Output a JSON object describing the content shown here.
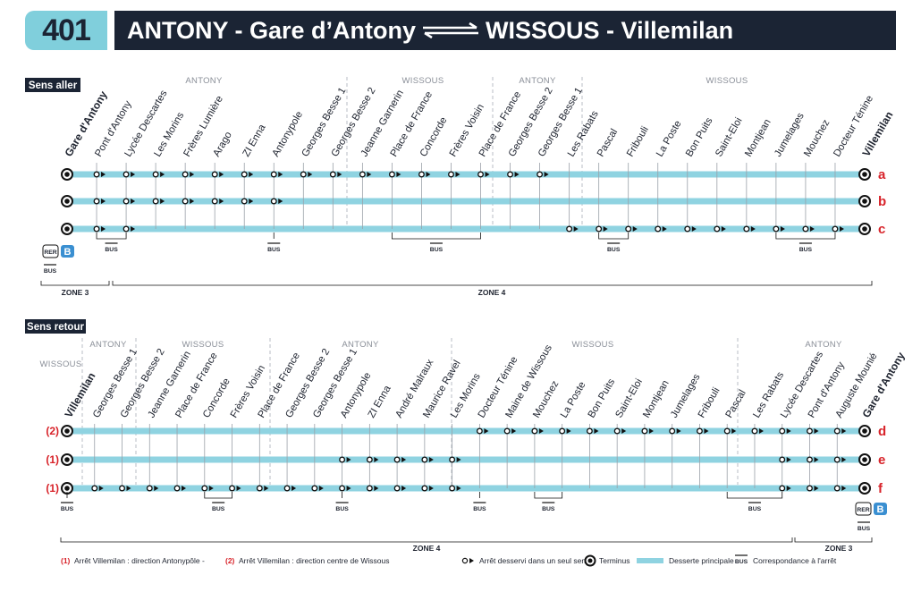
{
  "header": {
    "line_number": "401",
    "origin": "ANTONY - Gare d’Antony",
    "destination": "WISSOUS - Villemilan",
    "badge_color": "#80cfdc",
    "bar_color": "#1b2434"
  },
  "colors": {
    "line": "#8fd3e1",
    "red": "#d8232a",
    "dark": "#1b2434",
    "rer_blue": "#3a8fd1"
  },
  "sens_aller": {
    "label": "Sens aller",
    "towns": [
      "ANTONY",
      "WISSOUS",
      "ANTONY",
      "WISSOUS"
    ],
    "stops": [
      "Gare d'Antony",
      "Pont d'Antony",
      "Lycée Descartes",
      "Les Morins",
      "Frères Lumière",
      "Arago",
      "ZI Enna",
      "Antonypole",
      "Georges Besse 1",
      "Georges Besse 2",
      "Jeanne Garnerin",
      "Place de France",
      "Concorde",
      "Frères Voisin",
      "Place de France",
      "Georges Besse 2",
      "Georges Besse 1",
      "Les Rabats",
      "Pascal",
      "Fribouli",
      "La Poste",
      "Bon Puits",
      "Saint-Eloi",
      "Montjean",
      "Jumelages",
      "Mouchez",
      "Docteur Ténine",
      "Villemilan"
    ],
    "branches": [
      "a",
      "b",
      "c"
    ],
    "zones": [
      "ZONE 3",
      "ZONE 4"
    ]
  },
  "sens_retour": {
    "label": "Sens retour",
    "towns": [
      "WISSOUS",
      "ANTONY",
      "WISSOUS",
      "ANTONY",
      "WISSOUS",
      "ANTONY"
    ],
    "stops": [
      "Villemilan",
      "Georges Besse 1",
      "Georges Besse 2",
      "Jeanne Garnerin",
      "Place de France",
      "Concorde",
      "Frères Voisin",
      "Place de France",
      "Georges Besse 2",
      "Georges Besse 1",
      "Antonypole",
      "ZI Enna",
      "André Malraux",
      "Maurice Ravel",
      "Les Morins",
      "Docteur Ténine",
      "Maine de Wissous",
      "Mouchez",
      "La Poste",
      "Bon Puits",
      "Saint-Eloi",
      "Montjean",
      "Jumelages",
      "Fribouli",
      "Pascal",
      "Les Rabats",
      "Lycée Descartes",
      "Pont d'Antony",
      "Auguste Mounié",
      "Gare d'Antony"
    ],
    "branches": [
      "d",
      "e",
      "f"
    ],
    "notes_markers": [
      "(2)",
      "(1)",
      "(1)"
    ],
    "zones": [
      "ZONE 4",
      "ZONE 3"
    ]
  },
  "transfers": {
    "rer": "RER",
    "rer_line": "B",
    "bus": "BUS"
  },
  "legend": {
    "note1_marker": "(1)",
    "note1_text": "Arrêt Villemilan : direction Antonypôle -",
    "note2_marker": "(2)",
    "note2_text": "Arrêt Villemilan : direction centre de Wissous",
    "one_way": "Arrêt desservi dans un seul sens",
    "terminus": "Terminus",
    "main_service": "Desserte principale",
    "bus_label": "BUS",
    "connection": "Correspondance à l'arrêt"
  }
}
